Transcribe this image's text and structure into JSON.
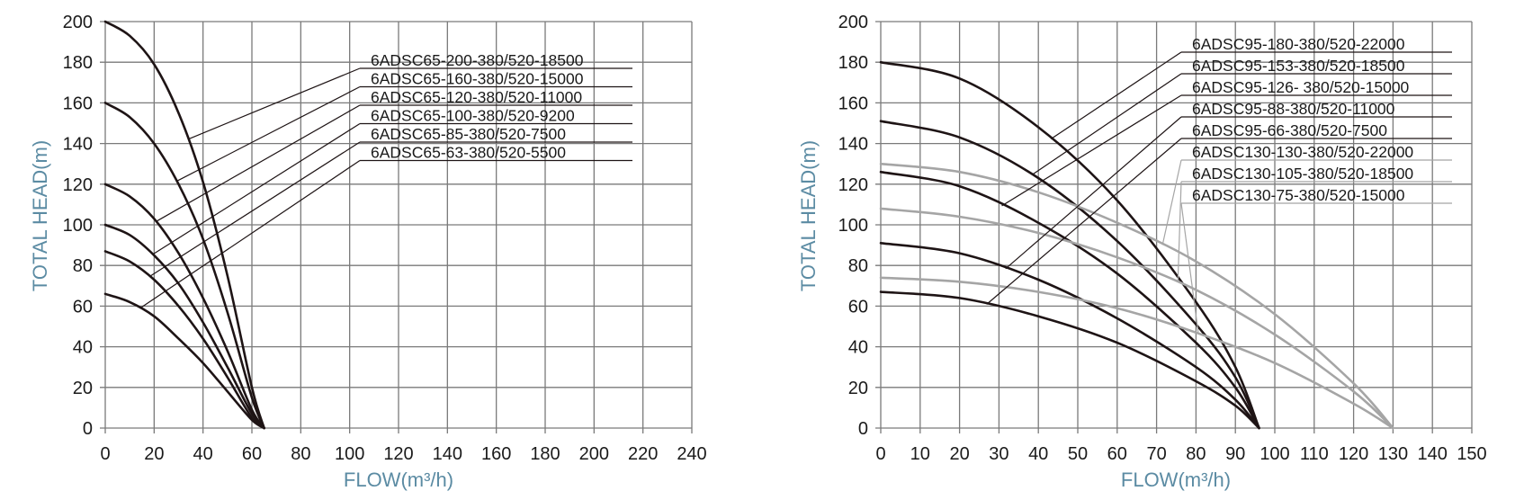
{
  "chart_data": [
    {
      "type": "line",
      "title": "",
      "xlabel": "FLOW(m³/h)",
      "ylabel": "TOTAL HEAD(m)",
      "xlim": [
        0,
        240
      ],
      "ylim": [
        0,
        200
      ],
      "xticks": [
        "0",
        "20",
        "40",
        "60",
        "80",
        "100",
        "120",
        "140",
        "160",
        "180",
        "200",
        "220",
        "240"
      ],
      "yticks": [
        "0",
        "20",
        "40",
        "60",
        "80",
        "100",
        "120",
        "140",
        "160",
        "180",
        "200"
      ],
      "grid": true,
      "legend_position": "top-right",
      "series": [
        {
          "name": "6ADSC65-200-380/520-18500",
          "color": "#1e1415",
          "x": [
            0,
            10,
            20,
            30,
            40,
            50,
            60,
            65
          ],
          "y": [
            200,
            193,
            179,
            155,
            121,
            75,
            20,
            0
          ]
        },
        {
          "name": "6ADSC65-160-380/520-15000",
          "color": "#1e1415",
          "x": [
            0,
            10,
            20,
            30,
            40,
            50,
            60,
            65
          ],
          "y": [
            160,
            153,
            140,
            120,
            93,
            57,
            15,
            0
          ]
        },
        {
          "name": "6ADSC65-120-380/520-11000",
          "color": "#1e1415",
          "x": [
            0,
            10,
            20,
            30,
            40,
            50,
            60,
            65
          ],
          "y": [
            120,
            114,
            103,
            86,
            64,
            38,
            9,
            0
          ]
        },
        {
          "name": "6ADSC65-100-380/520-9200",
          "color": "#1e1415",
          "x": [
            0,
            10,
            20,
            30,
            40,
            50,
            60,
            65
          ],
          "y": [
            100,
            95,
            85,
            71,
            52,
            30,
            7,
            0
          ]
        },
        {
          "name": "6ADSC65-85-380/520-7500",
          "color": "#1e1415",
          "x": [
            0,
            10,
            20,
            30,
            40,
            50,
            60,
            65
          ],
          "y": [
            87,
            82,
            73,
            60,
            44,
            25,
            5,
            0
          ]
        },
        {
          "name": "6ADSC65-63-380/520-5500",
          "color": "#1e1415",
          "x": [
            0,
            10,
            20,
            30,
            40,
            50,
            60,
            65
          ],
          "y": [
            66,
            62,
            55,
            44,
            32,
            18,
            4,
            0
          ]
        }
      ]
    },
    {
      "type": "line",
      "title": "",
      "xlabel": "FLOW(m³/h)",
      "ylabel": "TOTAL HEAD(m)",
      "xlim": [
        0,
        150
      ],
      "ylim": [
        0,
        200
      ],
      "xticks": [
        "0",
        "10",
        "20",
        "30",
        "40",
        "50",
        "60",
        "70",
        "80",
        "90",
        "100",
        "110",
        "120",
        "130",
        "140",
        "150"
      ],
      "yticks": [
        "0",
        "20",
        "40",
        "60",
        "80",
        "100",
        "120",
        "140",
        "160",
        "180",
        "200"
      ],
      "grid": true,
      "legend_position": "top-right",
      "series": [
        {
          "name": "6ADSC95-180-380/520-22000",
          "color": "#1e1415",
          "x": [
            0,
            20,
            40,
            60,
            80,
            90,
            96
          ],
          "y": [
            180,
            172,
            148,
            112,
            62,
            30,
            0
          ]
        },
        {
          "name": "6ADSC95-153-380/520-18500",
          "color": "#1e1415",
          "x": [
            0,
            20,
            40,
            60,
            80,
            90,
            96
          ],
          "y": [
            151,
            143,
            123,
            92,
            51,
            25,
            0
          ]
        },
        {
          "name": "6ADSC95-126- 380/520-15000",
          "color": "#1e1415",
          "x": [
            0,
            20,
            40,
            60,
            80,
            90,
            96
          ],
          "y": [
            126,
            119,
            101,
            76,
            42,
            20,
            0
          ]
        },
        {
          "name": "6ADSC95-88-380/520-11000",
          "color": "#1e1415",
          "x": [
            0,
            20,
            40,
            60,
            80,
            90,
            96
          ],
          "y": [
            91,
            86,
            73,
            54,
            30,
            14,
            0
          ]
        },
        {
          "name": "6ADSC95-66-380/520-7500",
          "color": "#1e1415",
          "x": [
            0,
            20,
            40,
            60,
            80,
            90,
            96
          ],
          "y": [
            67,
            64,
            55,
            42,
            23,
            11,
            0
          ]
        },
        {
          "name": "6ADSC130-130-380/520-22000",
          "color": "#a5a5a5",
          "x": [
            0,
            20,
            40,
            60,
            80,
            100,
            120,
            130
          ],
          "y": [
            130,
            126,
            116,
            101,
            82,
            56,
            22,
            0
          ]
        },
        {
          "name": "6ADSC130-105-380/520-18500",
          "color": "#a5a5a5",
          "x": [
            0,
            20,
            40,
            60,
            80,
            100,
            120,
            130
          ],
          "y": [
            108,
            104,
            96,
            84,
            68,
            46,
            18,
            0
          ]
        },
        {
          "name": "6ADSC130-75-380/520-15000",
          "color": "#a5a5a5",
          "x": [
            0,
            20,
            40,
            60,
            80,
            100,
            120,
            130
          ],
          "y": [
            74,
            72,
            67,
            59,
            47,
            32,
            12,
            0
          ]
        }
      ]
    }
  ]
}
